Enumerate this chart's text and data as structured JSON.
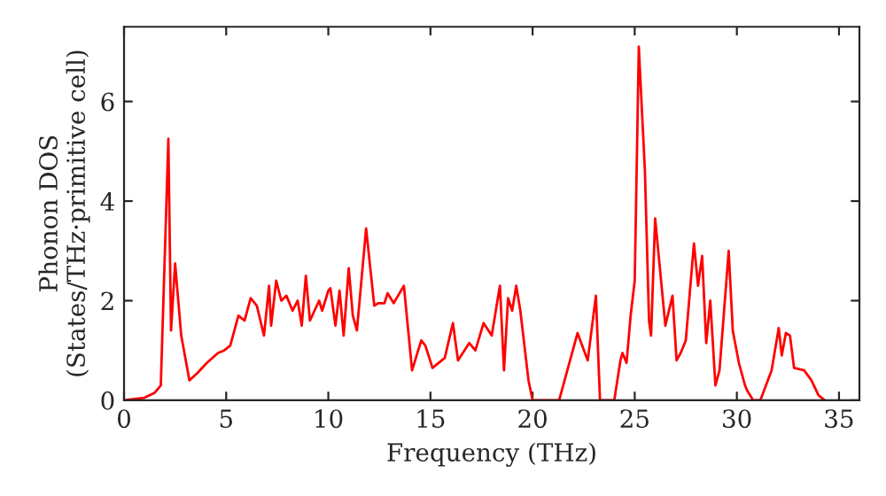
{
  "chart_data": {
    "type": "line",
    "xlabel": "Frequency (THz)",
    "ylabel": "Phonon DOS\n(States/THz·primitive cell)",
    "xlim": [
      0,
      36
    ],
    "ylim": [
      0,
      7.5
    ],
    "xticks": [
      0,
      5,
      10,
      15,
      20,
      25,
      30,
      35
    ],
    "yticks": [
      0,
      2,
      4,
      6
    ],
    "grid": false,
    "legend": false,
    "series": [
      {
        "color": "#ff0000",
        "x": [
          0,
          1.0,
          1.5,
          1.8,
          2.17,
          2.3,
          2.5,
          2.8,
          3.2,
          3.6,
          4.05,
          4.6,
          4.9,
          5.2,
          5.6,
          5.9,
          6.2,
          6.5,
          6.85,
          7.1,
          7.2,
          7.45,
          7.7,
          7.95,
          8.25,
          8.5,
          8.7,
          8.9,
          9.1,
          9.55,
          9.7,
          10.0,
          10.1,
          10.35,
          10.55,
          10.75,
          11.0,
          11.2,
          11.4,
          11.85,
          12.25,
          12.45,
          12.75,
          12.9,
          13.2,
          13.7,
          14.1,
          14.55,
          14.75,
          15.1,
          15.7,
          16.1,
          16.35,
          16.9,
          17.2,
          17.6,
          18.0,
          18.4,
          18.6,
          18.8,
          19.0,
          19.2,
          19.4,
          19.8,
          20.0,
          20.3,
          21.3,
          22.2,
          22.7,
          23.1,
          23.3,
          24.0,
          24.3,
          24.4,
          24.6,
          24.8,
          25.0,
          25.2,
          25.5,
          25.7,
          25.8,
          26.0,
          26.5,
          26.85,
          27.05,
          27.25,
          27.5,
          27.9,
          28.1,
          28.3,
          28.5,
          28.7,
          28.95,
          29.15,
          29.6,
          29.8,
          30.1,
          30.4,
          30.5,
          30.8,
          31.15,
          31.7,
          32.05,
          32.2,
          32.4,
          32.6,
          32.8,
          33.3,
          33.65,
          34.0,
          34.3
        ],
        "values": [
          0,
          0.05,
          0.15,
          0.3,
          5.25,
          1.4,
          2.75,
          1.3,
          0.4,
          0.55,
          0.75,
          0.95,
          1.0,
          1.1,
          1.7,
          1.6,
          2.05,
          1.9,
          1.3,
          2.3,
          1.5,
          2.4,
          2.0,
          2.1,
          1.8,
          2.0,
          1.5,
          2.5,
          1.6,
          2.0,
          1.8,
          2.2,
          2.25,
          1.5,
          2.2,
          1.3,
          2.65,
          1.7,
          1.4,
          3.45,
          1.9,
          1.95,
          1.95,
          2.15,
          1.95,
          2.3,
          0.6,
          1.2,
          1.1,
          0.65,
          0.85,
          1.55,
          0.8,
          1.15,
          1.0,
          1.55,
          1.3,
          2.3,
          0.6,
          2.05,
          1.8,
          2.3,
          1.8,
          0.4,
          0,
          0,
          0,
          1.35,
          0.8,
          2.1,
          0,
          0,
          0.8,
          0.95,
          0.75,
          1.7,
          2.4,
          7.1,
          4.6,
          1.6,
          1.3,
          3.65,
          1.5,
          2.1,
          0.8,
          0.95,
          1.2,
          3.15,
          2.3,
          2.9,
          1.15,
          2.0,
          0.3,
          0.6,
          3.0,
          1.4,
          0.75,
          0.3,
          0.2,
          0,
          0,
          0.6,
          1.45,
          0.9,
          1.35,
          1.3,
          0.65,
          0.6,
          0.4,
          0.1,
          0
        ]
      }
    ]
  }
}
